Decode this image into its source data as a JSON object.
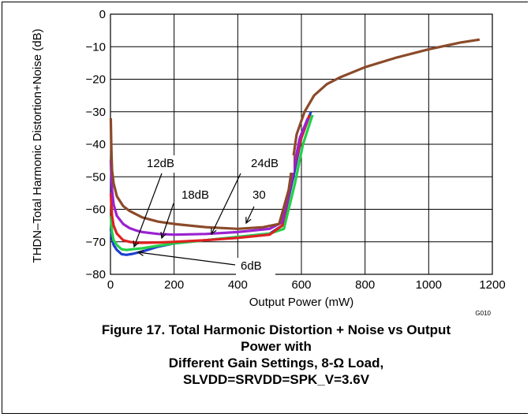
{
  "chart_data": {
    "type": "line",
    "title": "",
    "xlabel": "Output Power  (mW)",
    "ylabel": "THDN–Total Harmonic Distortion+Noise (dB)",
    "xlim": [
      0,
      1200
    ],
    "ylim": [
      -80,
      0
    ],
    "xticks": [
      0,
      200,
      400,
      600,
      800,
      1000,
      1200
    ],
    "yticks": [
      0,
      -10,
      -20,
      -30,
      -40,
      -50,
      -60,
      -70,
      -80
    ],
    "ytick_labels": [
      "0",
      "−10",
      "−20",
      "−30",
      "−40",
      "−50",
      "−60",
      "−70",
      "−80"
    ],
    "grid": true,
    "figure_code": "G010",
    "series": [
      {
        "name": "6dB",
        "color": "#1f3fd0",
        "x": [
          1,
          5,
          10,
          20,
          35,
          50,
          70,
          100,
          150,
          200,
          300,
          400,
          500,
          540,
          575,
          600,
          630
        ],
        "y": [
          -66,
          -69,
          -71,
          -72.5,
          -73.8,
          -74,
          -73.7,
          -73,
          -71.5,
          -70.5,
          -69.5,
          -68.5,
          -67.5,
          -65,
          -50,
          -38,
          -30
        ]
      },
      {
        "name": "12dB",
        "color": "#22d048",
        "x": [
          1,
          5,
          10,
          20,
          35,
          50,
          70,
          100,
          150,
          200,
          300,
          400,
          500,
          545,
          580,
          605,
          635
        ],
        "y": [
          -62,
          -67,
          -69.5,
          -71,
          -72.3,
          -72.5,
          -72.3,
          -72,
          -71.2,
          -70.5,
          -69.5,
          -68.5,
          -67.5,
          -66,
          -52,
          -40,
          -31
        ]
      },
      {
        "name": "18dB",
        "color": "#e02020",
        "x": [
          1,
          5,
          10,
          20,
          40,
          60,
          80,
          100,
          150,
          200,
          300,
          400,
          500,
          540,
          575,
          600,
          625
        ],
        "y": [
          -55,
          -62,
          -65,
          -67.5,
          -69.5,
          -70,
          -70.3,
          -70.3,
          -70.2,
          -70,
          -69.5,
          -68.8,
          -67.8,
          -65,
          -48,
          -38,
          -31
        ]
      },
      {
        "name": "24dB",
        "color": "#9a22d0",
        "x": [
          1,
          5,
          10,
          20,
          40,
          60,
          80,
          100,
          150,
          200,
          300,
          400,
          500,
          540,
          570,
          595,
          620
        ],
        "y": [
          -45,
          -54,
          -58.5,
          -62,
          -64.5,
          -65.8,
          -66.5,
          -67,
          -67.6,
          -67.8,
          -67.6,
          -67,
          -66,
          -64,
          -50,
          -38,
          -32
        ]
      },
      {
        "name": "30",
        "color": "#8b4a2a",
        "x": [
          1,
          3,
          5,
          10,
          20,
          40,
          60,
          100,
          150,
          200,
          300,
          400,
          480,
          530,
          560,
          585,
          610,
          640,
          680,
          720,
          800,
          900,
          1000,
          1100,
          1160
        ],
        "y": [
          -32,
          -42,
          -48,
          -52,
          -56,
          -59,
          -60.5,
          -62.5,
          -63.8,
          -64.5,
          -65.5,
          -66,
          -65.5,
          -64.5,
          -54,
          -37,
          -30,
          -25,
          -21.5,
          -19.5,
          -16.3,
          -13.3,
          -10.8,
          -8.7,
          -7.8
        ]
      }
    ],
    "annotations": [
      "12dB",
      "18dB",
      "24dB",
      "30",
      "6dB"
    ]
  },
  "caption": {
    "line1": "Figure 17. Total Harmonic Distortion + Noise vs Output",
    "line2": "Power with",
    "line3": "Different Gain Settings, 8-Ω Load,",
    "line4": "SLVDD=SRVDD=SPK_V=3.6V"
  }
}
